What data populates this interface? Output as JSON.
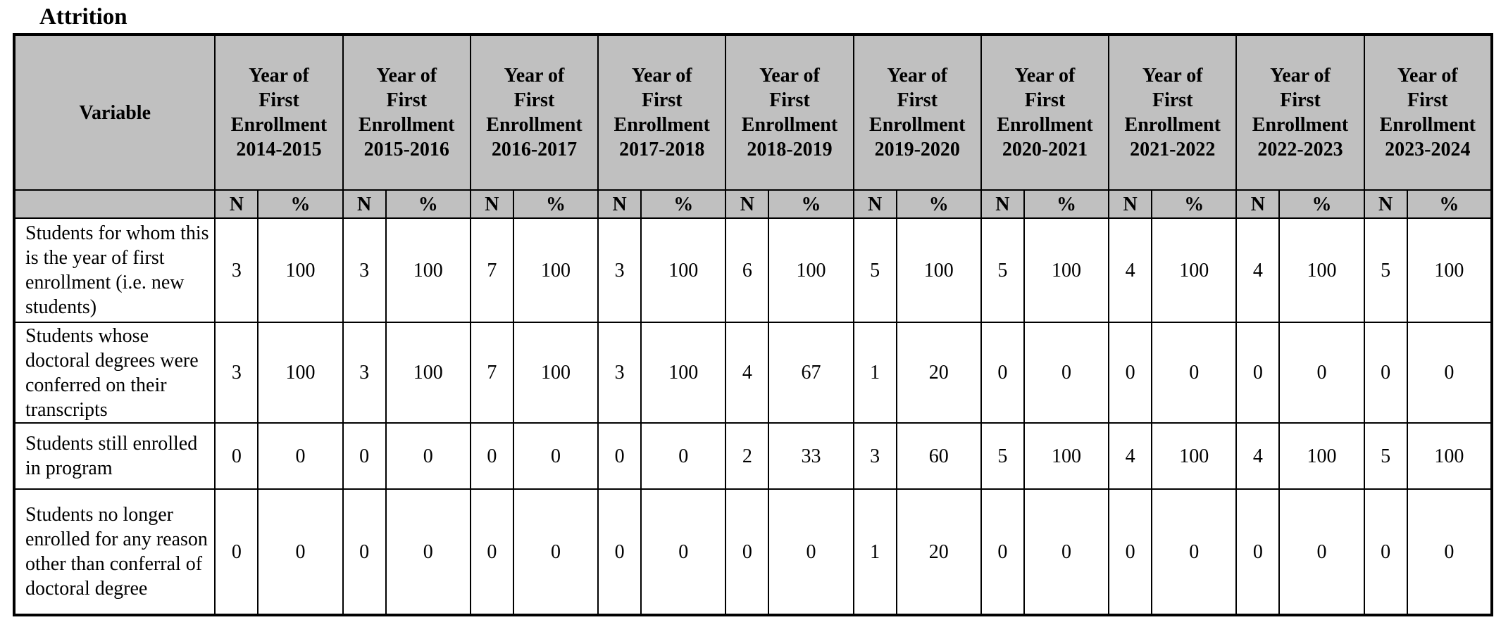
{
  "title": "Attrition",
  "variable_header": "Variable",
  "sub_headers": {
    "n": "N",
    "pct": "%"
  },
  "years": [
    {
      "line1": "Year of",
      "line2": "First",
      "line3": "Enrollment",
      "range": "2014-2015"
    },
    {
      "line1": "Year of",
      "line2": "First",
      "line3": "Enrollment",
      "range": "2015-2016"
    },
    {
      "line1": "Year of",
      "line2": "First",
      "line3": "Enrollment",
      "range": "2016-2017"
    },
    {
      "line1": "Year of",
      "line2": "First",
      "line3": "Enrollment",
      "range": "2017-2018"
    },
    {
      "line1": "Year of",
      "line2": "First",
      "line3": "Enrollment",
      "range": "2018-2019"
    },
    {
      "line1": "Year of",
      "line2": "First",
      "line3": "Enrollment",
      "range": "2019-2020"
    },
    {
      "line1": "Year of",
      "line2": "First",
      "line3": "Enrollment",
      "range": "2020-2021"
    },
    {
      "line1": "Year of",
      "line2": "First",
      "line3": "Enrollment",
      "range": "2021-2022"
    },
    {
      "line1": "Year of",
      "line2": "First",
      "line3": "Enrollment",
      "range": "2022-2023"
    },
    {
      "line1": "Year of",
      "line2": "First",
      "line3": "Enrollment",
      "range": "2023-2024"
    }
  ],
  "rows": [
    {
      "label": "Students for whom this is the year of first enrollment (i.e. new students)",
      "cells": [
        "3",
        "100",
        "3",
        "100",
        "7",
        "100",
        "3",
        "100",
        "6",
        "100",
        "5",
        "100",
        "5",
        "100",
        "4",
        "100",
        "4",
        "100",
        "5",
        "100"
      ]
    },
    {
      "label": "Students whose doctoral degrees were conferred on their transcripts",
      "cells": [
        "3",
        "100",
        "3",
        "100",
        "7",
        "100",
        "3",
        "100",
        "4",
        "67",
        "1",
        "20",
        "0",
        "0",
        "0",
        "0",
        "0",
        "0",
        "0",
        "0"
      ]
    },
    {
      "label": "Students still enrolled in program",
      "cells": [
        "0",
        "0",
        "0",
        "0",
        "0",
        "0",
        "0",
        "0",
        "2",
        "33",
        "3",
        "60",
        "5",
        "100",
        "4",
        "100",
        "4",
        "100",
        "5",
        "100"
      ]
    },
    {
      "label": "Students no longer enrolled for any reason other than conferral of doctoral degree",
      "cells": [
        "0",
        "0",
        "0",
        "0",
        "0",
        "0",
        "0",
        "0",
        "0",
        "0",
        "1",
        "20",
        "0",
        "0",
        "0",
        "0",
        "0",
        "0",
        "0",
        "0"
      ]
    }
  ]
}
